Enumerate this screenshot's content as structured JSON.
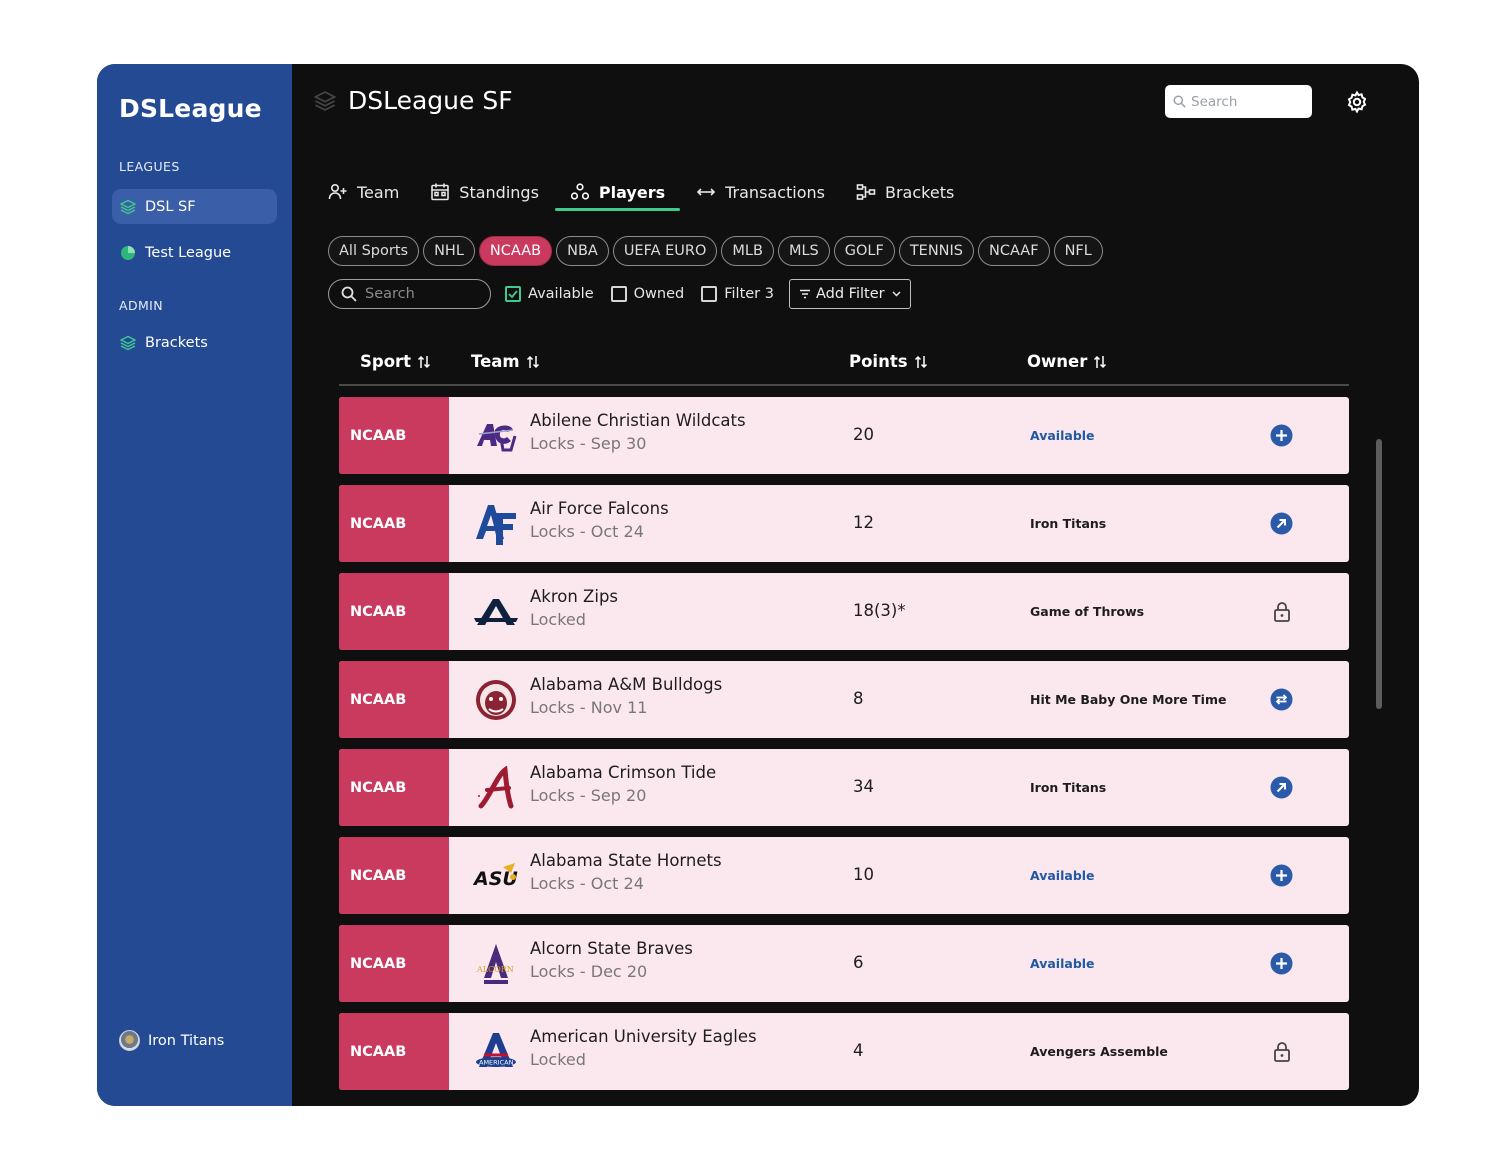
{
  "sidebar": {
    "brand": "DSLeague",
    "leagues_label": "LEAGUES",
    "admin_label": "ADMIN",
    "items": [
      {
        "label": "DSL SF",
        "icon": "layers-icon"
      },
      {
        "label": "Test League",
        "icon": "pie-icon"
      },
      {
        "label": "Brackets",
        "icon": "layers-icon"
      }
    ],
    "user": {
      "name": "Iron Titans",
      "icon": "avatar"
    }
  },
  "header": {
    "title": "DSLeague SF",
    "search_placeholder": "Search"
  },
  "tabs": [
    {
      "label": "Team",
      "icon": "add-user-icon"
    },
    {
      "label": "Standings",
      "icon": "calendar-icon"
    },
    {
      "label": "Players",
      "icon": "people-icon"
    },
    {
      "label": "Transactions",
      "icon": "swap-arrows-icon"
    },
    {
      "label": "Brackets",
      "icon": "bracket-icon"
    }
  ],
  "sport_chips": [
    "All Sports",
    "NHL",
    "NCAAB",
    "NBA",
    "UEFA EURO",
    "MLB",
    "MLS",
    "GOLF",
    "TENNIS",
    "NCAAF",
    "NFL"
  ],
  "active_chip": "NCAAB",
  "filters": {
    "search_placeholder": "Search",
    "available": "Available",
    "owned": "Owned",
    "filter3": "Filter 3",
    "add_filter": "Add Filter"
  },
  "table": {
    "headers": {
      "sport": "Sport",
      "team": "Team",
      "points": "Points",
      "owner": "Owner"
    },
    "rows": [
      {
        "sport": "NCAAB",
        "team": "Abilene Christian Wildcats",
        "sub": "Locks - Sep 30",
        "points": "20",
        "owner": "Available",
        "action": "add-icon",
        "logo": "ACU"
      },
      {
        "sport": "NCAAB",
        "team": "Air Force Falcons",
        "sub": "Locks - Oct 24",
        "points": "12",
        "owner": "Iron Titans",
        "action": "arrow-up-right-icon",
        "logo": "AF"
      },
      {
        "sport": "NCAAB",
        "team": "Akron Zips",
        "sub": "Locked",
        "points": "18(3)*",
        "owner": "Game of Throws",
        "action": "lock-icon",
        "logo": "A"
      },
      {
        "sport": "NCAAB",
        "team": "Alabama A&M Bulldogs",
        "sub": "Locks - Nov 11",
        "points": "8",
        "owner": "Hit Me Baby One More Time",
        "action": "trade-icon",
        "logo": "bulldog"
      },
      {
        "sport": "NCAAB",
        "team": "Alabama Crimson Tide",
        "sub": "Locks - Sep 20",
        "points": "34",
        "owner": "Iron Titans",
        "action": "arrow-up-right-icon",
        "logo": "A-script"
      },
      {
        "sport": "NCAAB",
        "team": "Alabama State Hornets",
        "sub": "Locks - Oct 24",
        "points": "10",
        "owner": "Available",
        "action": "add-icon",
        "logo": "ASU"
      },
      {
        "sport": "NCAAB",
        "team": "Alcorn State Braves",
        "sub": "Locks - Dec 20",
        "points": "6",
        "owner": "Available",
        "action": "add-icon",
        "logo": "ALCORN"
      },
      {
        "sport": "NCAAB",
        "team": "American University Eagles",
        "sub": "Locked",
        "points": "4",
        "owner": "Avengers Assemble",
        "action": "lock-icon",
        "logo": "AMERICAN"
      }
    ]
  },
  "colors": {
    "sidebar": "#254a94",
    "background": "#0f0f0f",
    "accent_green": "#3ecb8d",
    "sport_red": "#c93a5e",
    "row_bg": "#fbe8ee",
    "available_blue": "#2158a3",
    "action_blue": "#2b5aa8"
  }
}
